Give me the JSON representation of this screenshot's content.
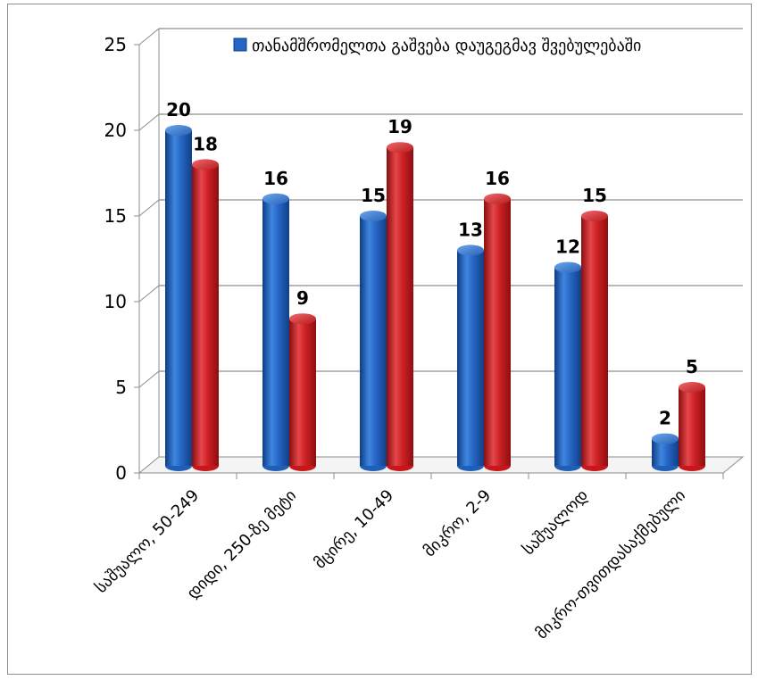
{
  "chart_data": {
    "type": "bar",
    "style": "3d-cylinder",
    "categories": [
      "საშუალო, 50-249",
      "დიდი, 250-ზე მეტი",
      "მცირე, 10-49",
      "მიკრო, 2-9",
      "საშუალოდ",
      "მიკრო-თვითდასაქმებული"
    ],
    "series": [
      {
        "name": "თანამშრომელთა გაშვება დაუგეგმავ შვებულებაში",
        "color": "#1f5fb8",
        "values": [
          20,
          16,
          15,
          13,
          12,
          2
        ]
      },
      {
        "color": "#c8161a",
        "values": [
          18,
          9,
          19,
          16,
          15,
          5
        ]
      }
    ],
    "yticks": [
      "0",
      "5",
      "10",
      "15",
      "20",
      "25"
    ],
    "ylim": [
      0,
      25
    ],
    "grid": true,
    "legend_position": "top-right",
    "xlabel": "",
    "ylabel": ""
  }
}
